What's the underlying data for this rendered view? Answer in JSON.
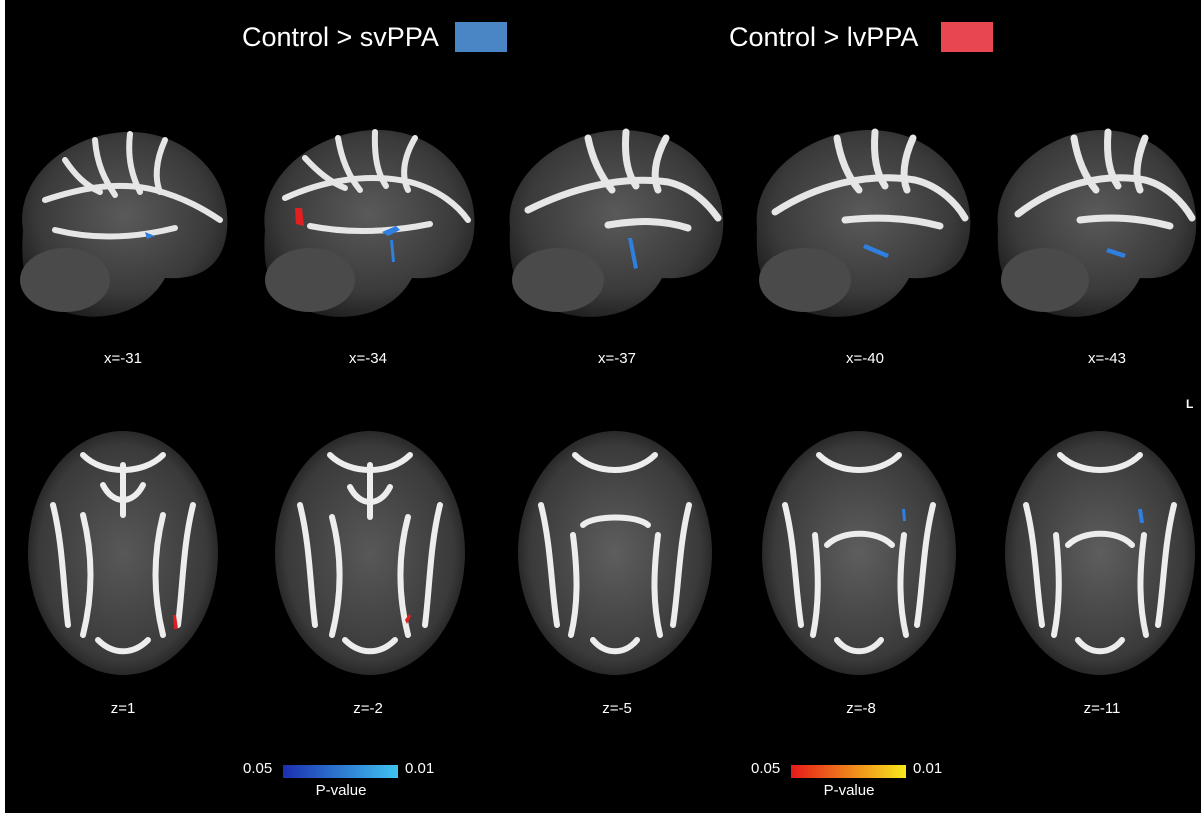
{
  "legend": [
    {
      "label": "Control > svPPA",
      "color": "#4a86c5"
    },
    {
      "label": "Control > lvPPA",
      "color": "#e8474f"
    }
  ],
  "orientation_label": "L",
  "sagittal_slices": [
    {
      "coord": "x=-31"
    },
    {
      "coord": "x=-34"
    },
    {
      "coord": "x=-37"
    },
    {
      "coord": "x=-40"
    },
    {
      "coord": "x=-43"
    }
  ],
  "axial_slices": [
    {
      "coord": "z=1"
    },
    {
      "coord": "z=-2"
    },
    {
      "coord": "z=-5"
    },
    {
      "coord": "z=-8"
    },
    {
      "coord": "z=-11"
    }
  ],
  "colorbars": [
    {
      "min_label": "0.05",
      "max_label": "0.01",
      "title": "P-value",
      "color_start": "#1c2fb0",
      "color_end": "#3fc3f0"
    },
    {
      "min_label": "0.05",
      "max_label": "0.01",
      "title": "P-value",
      "color_start": "#e61a1a",
      "color_end": "#f7e81c"
    }
  ],
  "colors": {
    "background": "#000000",
    "blue_cluster": "#2f7fe0",
    "red_cluster": "#e02020"
  }
}
